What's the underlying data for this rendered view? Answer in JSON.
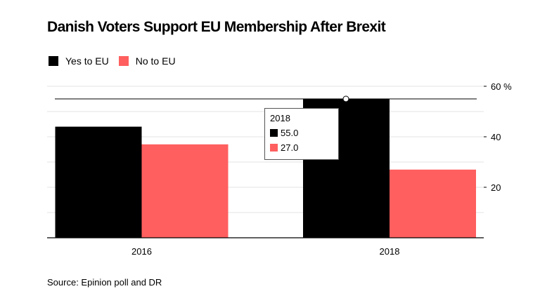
{
  "chart_data": {
    "type": "bar",
    "title": "Danish Voters Support EU Membership After Brexit",
    "categories": [
      "2016",
      "2018"
    ],
    "series": [
      {
        "name": "Yes to EU",
        "values": [
          44,
          55.0
        ],
        "color": "#000000"
      },
      {
        "name": "No to EU",
        "values": [
          37,
          27.0
        ],
        "color": "#ff5f5f"
      }
    ],
    "ylim": [
      0,
      60
    ],
    "yticks": [
      "60 %",
      "40",
      "20"
    ],
    "ytick_values": [
      60,
      40,
      20
    ],
    "reference_line_value": 55,
    "tooltip": {
      "title": "2018",
      "rows": [
        {
          "value": "55.0",
          "color": "#000000"
        },
        {
          "value": "27.0",
          "color": "#ff5f5f"
        }
      ]
    },
    "source": "Source: Epinion poll and DR"
  }
}
